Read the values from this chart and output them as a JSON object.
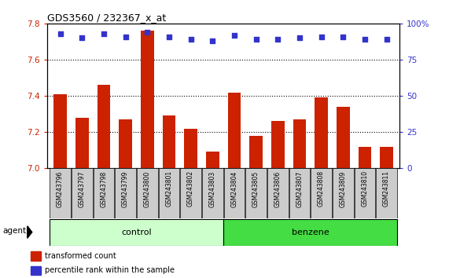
{
  "title": "GDS3560 / 232367_x_at",
  "samples": [
    "GSM243796",
    "GSM243797",
    "GSM243798",
    "GSM243799",
    "GSM243800",
    "GSM243801",
    "GSM243802",
    "GSM243803",
    "GSM243804",
    "GSM243805",
    "GSM243806",
    "GSM243807",
    "GSM243808",
    "GSM243809",
    "GSM243810",
    "GSM243811"
  ],
  "bar_values": [
    7.41,
    7.28,
    7.46,
    7.27,
    7.76,
    7.29,
    7.22,
    7.09,
    7.42,
    7.18,
    7.26,
    7.27,
    7.39,
    7.34,
    7.12,
    7.12
  ],
  "percentile_values": [
    93,
    90,
    93,
    91,
    94,
    91,
    89,
    88,
    92,
    89,
    89,
    90,
    91,
    91,
    89,
    89
  ],
  "ylim_left": [
    7.0,
    7.8
  ],
  "ylim_right": [
    0,
    100
  ],
  "yticks_left": [
    7.0,
    7.2,
    7.4,
    7.6,
    7.8
  ],
  "yticks_right": [
    0,
    25,
    50,
    75,
    100
  ],
  "ytick_labels_right": [
    "0",
    "25",
    "50",
    "75",
    "100%"
  ],
  "bar_color": "#cc2200",
  "dot_color": "#3333cc",
  "grid_color": "#000000",
  "control_color": "#ccffcc",
  "benzene_color": "#44dd44",
  "agent_label": "agent",
  "control_label": "control",
  "benzene_label": "benzene",
  "n_control": 8,
  "n_benzene": 8,
  "legend_bar_label": "transformed count",
  "legend_dot_label": "percentile rank within the sample",
  "bg_color": "#ffffff",
  "plot_bg_color": "#ffffff",
  "tick_color_left": "#cc2200",
  "tick_color_right": "#3333cc",
  "x_label_bg": "#cccccc"
}
